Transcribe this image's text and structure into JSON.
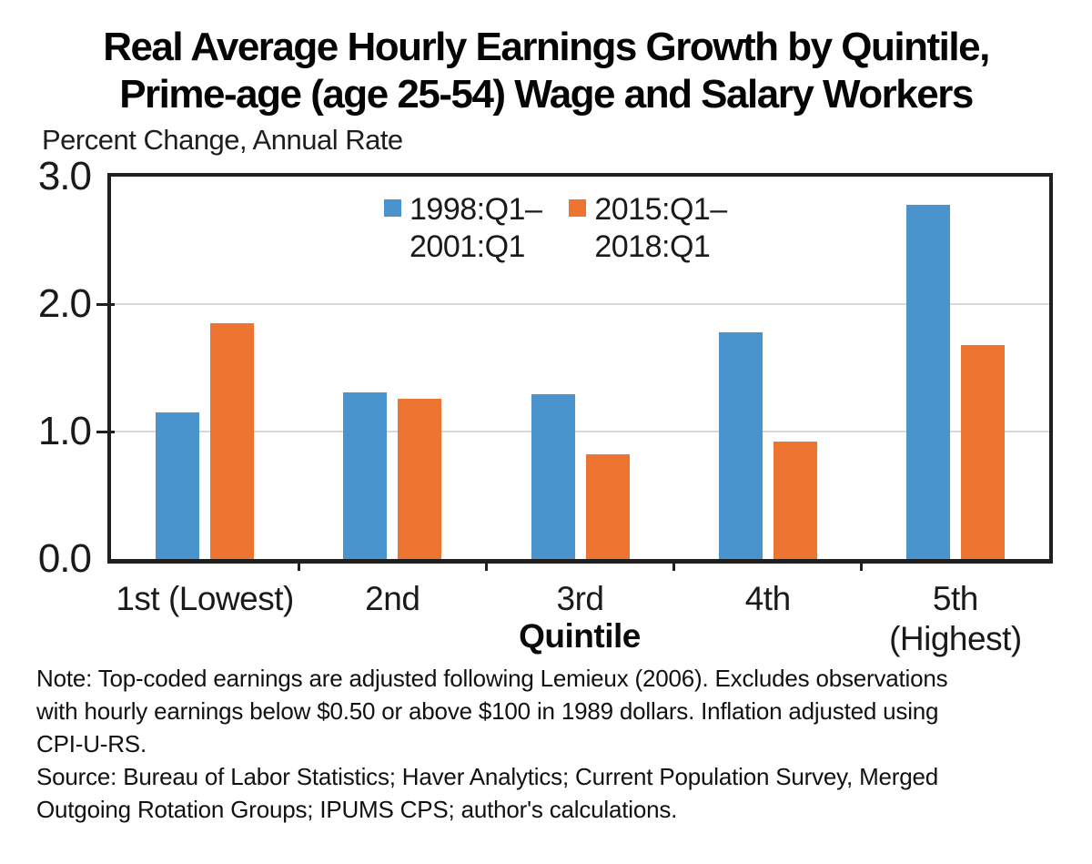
{
  "title": {
    "line1": "Real Average Hourly Earnings Growth by Quintile,",
    "line2": "Prime-age (age 25-54) Wage and Salary Workers"
  },
  "units_label": "Percent Change, Annual Rate",
  "chart_data": {
    "type": "bar",
    "title": "Real Average Hourly Earnings Growth by Quintile, Prime-age (age 25-54) Wage and Salary Workers",
    "units_label": "Percent Change, Annual Rate",
    "xlabel": "Quintile",
    "categories": [
      "1st (Lowest)",
      "2nd",
      "3rd",
      "4th",
      "5th\n(Highest)"
    ],
    "series": [
      {
        "name": "1998:Q1–2001:Q1",
        "color": "#4A94CE",
        "values": [
          1.15,
          1.31,
          1.29,
          1.78,
          2.78
        ]
      },
      {
        "name": "2015:Q1–2018:Q1",
        "color": "#ED7431",
        "values": [
          1.85,
          1.26,
          0.82,
          0.92,
          1.68
        ]
      }
    ],
    "ylim": [
      0,
      3
    ],
    "yticks": [
      3.0,
      2.0,
      1.0,
      0.0
    ],
    "ytick_labels": [
      "3.0",
      "2.0",
      "1.0",
      "0.0"
    ],
    "grid_values": [
      1.0,
      2.0
    ],
    "grid": "horizontal-light",
    "legend_position": "inside-top-center",
    "legend": [
      {
        "line1": "1998:Q1–",
        "line2": "2001:Q1",
        "color": "#4A94CE"
      },
      {
        "line1": "2015:Q1–",
        "line2": "2018:Q1",
        "color": "#ED7431"
      }
    ]
  },
  "footnotes": {
    "lines": [
      "Note: Top-coded earnings are adjusted following Lemieux (2006). Excludes observations",
      "with hourly earnings below $0.50 or above $100 in 1989 dollars. Inflation adjusted using",
      "CPI-U-RS.",
      "Source: Bureau of Labor Statistics; Haver Analytics; Current Population Survey, Merged",
      "Outgoing Rotation Groups; IPUMS CPS; author's calculations."
    ]
  },
  "colors": {
    "series1": "#4A94CE",
    "series2": "#ED7431",
    "axis": "#1f1f1f",
    "grid": "#d8d8d8",
    "background": "#ffffff"
  }
}
